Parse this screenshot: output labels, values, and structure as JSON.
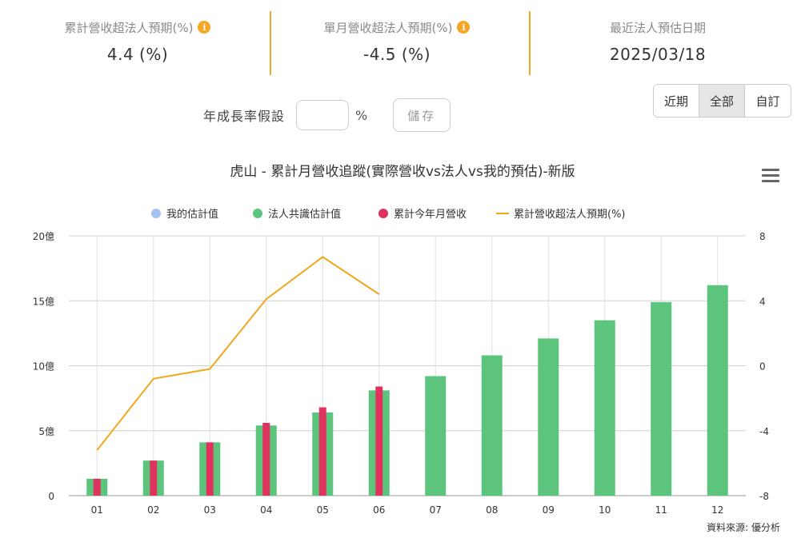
{
  "stats": [
    {
      "label": "累計營收超法人預期(%)",
      "value": "4.4 (%)",
      "has_info": true
    },
    {
      "label": "單月營收超法人預期(%)",
      "value": "-4.5 (%)",
      "has_info": true
    },
    {
      "label": "最近法人預估日期",
      "value": "2025/03/18",
      "has_info": false
    }
  ],
  "info_glyph": "i",
  "growth": {
    "label": "年成長率假設",
    "value": "",
    "unit": "%",
    "save_label": "儲存"
  },
  "range_buttons": [
    {
      "label": "近期",
      "active": false
    },
    {
      "label": "全部",
      "active": true
    },
    {
      "label": "自訂",
      "active": false
    }
  ],
  "chart_data": {
    "type": "bar",
    "title": "虎山 - 累計月營收追蹤(實際營收vs法人vs我的預估)-新版",
    "categories": [
      "01",
      "02",
      "03",
      "04",
      "05",
      "06",
      "07",
      "08",
      "09",
      "10",
      "11",
      "12"
    ],
    "y_left": {
      "min": 0,
      "max": 20,
      "ticks": [
        "0",
        "5億",
        "10億",
        "15億",
        "20億"
      ],
      "tick_values": [
        0,
        5,
        10,
        15,
        20
      ]
    },
    "y_right": {
      "min": -8,
      "max": 8,
      "ticks": [
        "-8",
        "-4",
        "0",
        "4",
        "8"
      ],
      "tick_values": [
        -8,
        -4,
        0,
        4,
        8
      ]
    },
    "series": [
      {
        "name": "我的估計值",
        "kind": "bar",
        "color": "#a3c1f5",
        "values": [
          null,
          null,
          null,
          null,
          null,
          null,
          null,
          null,
          null,
          null,
          null,
          null
        ]
      },
      {
        "name": "法人共識估計值",
        "kind": "bar",
        "color": "#5cc47c",
        "values": [
          1.3,
          2.7,
          4.1,
          5.4,
          6.4,
          8.1,
          9.2,
          10.8,
          12.1,
          13.5,
          14.9,
          16.2
        ]
      },
      {
        "name": "累計今年月營收",
        "kind": "bar",
        "color": "#e0325f",
        "values": [
          1.3,
          2.7,
          4.1,
          5.6,
          6.8,
          8.4,
          null,
          null,
          null,
          null,
          null,
          null
        ]
      },
      {
        "name": "累計營收超法人預期(%)",
        "kind": "line",
        "axis": "right",
        "color": "#f0a81c",
        "values": [
          -5.2,
          -0.8,
          -0.2,
          4.1,
          6.7,
          4.4,
          null,
          null,
          null,
          null,
          null,
          null
        ]
      }
    ],
    "grid": true,
    "legend_position": "top-center",
    "source_label": "資料來源: 優分析"
  }
}
